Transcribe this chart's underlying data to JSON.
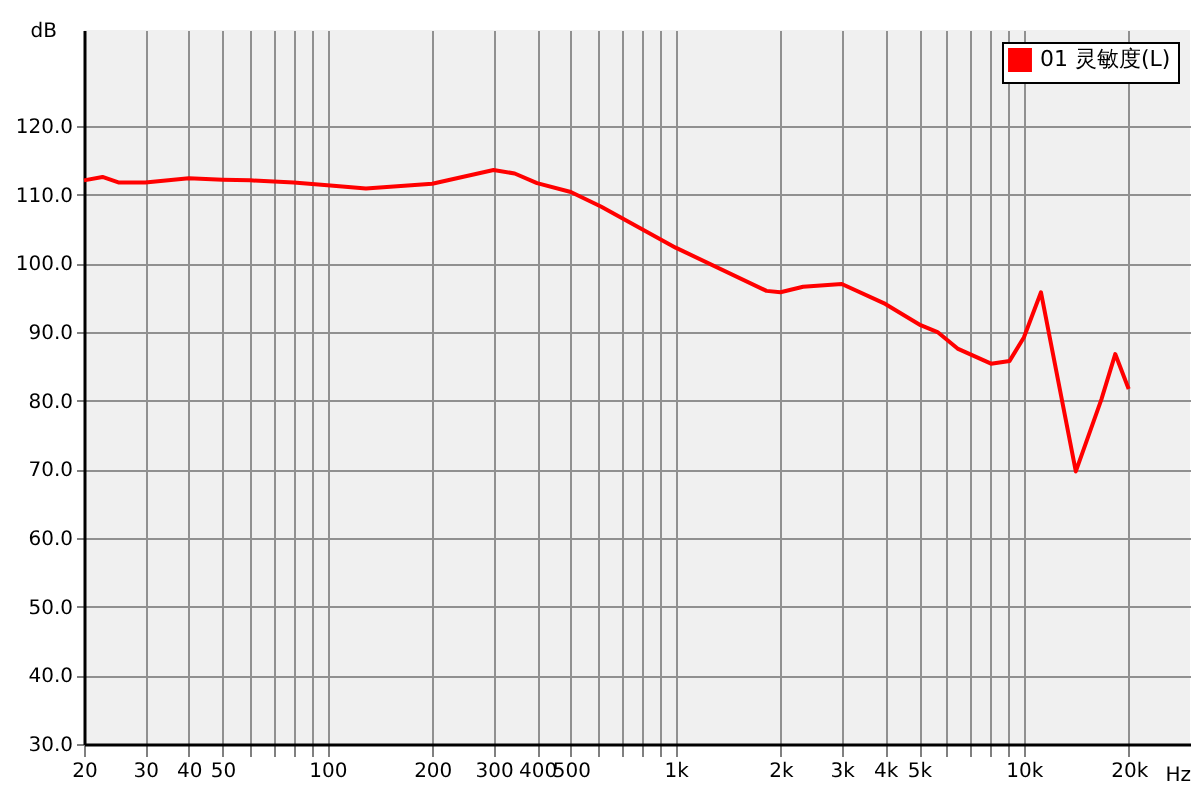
{
  "chart_data": {
    "type": "line",
    "xlabel": "Hz",
    "ylabel": "dB",
    "x": [
      20,
      22.6,
      25.1,
      30,
      40,
      50,
      60,
      80,
      100,
      129,
      200,
      300,
      345,
      400,
      500,
      610,
      1000,
      1824,
      2000,
      2323,
      3000,
      4000,
      5052,
      5650,
      6450,
      8050,
      9100,
      10000,
      11200,
      14100,
      16700,
      18300,
      20000
    ],
    "series": [
      {
        "name": "01 灵敏度(L)",
        "color": "#ff0000",
        "values": [
          112.1,
          112.6,
          111.8,
          111.8,
          112.4,
          112.2,
          112.1,
          111.8,
          111.4,
          110.9,
          111.6,
          113.6,
          113.1,
          111.7,
          110.4,
          108.3,
          102.3,
          96.0,
          95.8,
          96.6,
          97.0,
          94.1,
          91.0,
          90.0,
          87.6,
          85.4,
          85.8,
          89.2,
          95.8,
          69.7,
          80.2,
          86.8,
          81.7
        ]
      }
    ],
    "log": "x",
    "xlim": [
      20,
      30000
    ],
    "ylim": [
      30,
      134
    ],
    "xticks": [
      20,
      30,
      40,
      50,
      {
        "value": 60,
        "label": null
      },
      {
        "value": 70,
        "label": null
      },
      {
        "value": 80,
        "label": null
      },
      {
        "value": 90,
        "label": null
      },
      100,
      200,
      300,
      400,
      500,
      {
        "value": 600,
        "label": null
      },
      {
        "value": 700,
        "label": null
      },
      {
        "value": 800,
        "label": null
      },
      {
        "value": 900,
        "label": null
      },
      {
        "value": 1000,
        "label": "1k"
      },
      {
        "value": 2000,
        "label": "2k"
      },
      {
        "value": 3000,
        "label": "3k"
      },
      {
        "value": 4000,
        "label": "4k"
      },
      {
        "value": 5000,
        "label": "5k"
      },
      {
        "value": 6000,
        "label": null
      },
      {
        "value": 7000,
        "label": null
      },
      {
        "value": 8000,
        "label": null
      },
      {
        "value": 9000,
        "label": null
      },
      {
        "value": 10000,
        "label": "10k"
      },
      {
        "value": 20000,
        "label": "20k"
      }
    ],
    "yticks": [
      {
        "value": 30,
        "label": "30.0"
      },
      {
        "value": 40,
        "label": "40.0"
      },
      {
        "value": 50,
        "label": "50.0"
      },
      {
        "value": 60,
        "label": "60.0"
      },
      {
        "value": 70,
        "label": "70.0"
      },
      {
        "value": 80,
        "label": "80.0"
      },
      {
        "value": 90,
        "label": "90.0"
      },
      {
        "value": 100,
        "label": "100.0"
      },
      {
        "value": 110,
        "label": "110.0"
      },
      {
        "value": 120,
        "label": "120.0"
      }
    ],
    "grid": true,
    "legend": "top right",
    "marker": "none",
    "line_style": "solid"
  }
}
